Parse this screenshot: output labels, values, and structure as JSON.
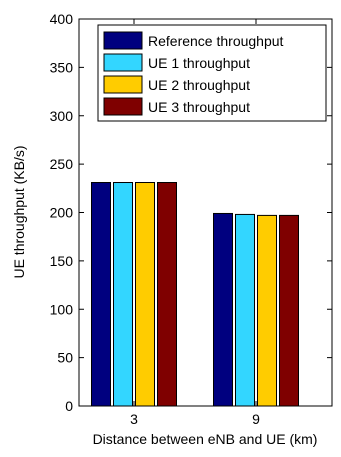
{
  "chart_data": {
    "type": "bar",
    "title": "",
    "xlabel": "Distance between eNB and UE (km)",
    "ylabel": "UE throughput (KB/s)",
    "categories": [
      "3",
      "9"
    ],
    "ylim": [
      0,
      400
    ],
    "yticks": [
      0,
      50,
      100,
      150,
      200,
      250,
      300,
      350,
      400
    ],
    "grid": false,
    "legend_position": "top-right",
    "series": [
      {
        "name": "Reference throughput",
        "color": "#00007f",
        "values": [
          231,
          199
        ]
      },
      {
        "name": "UE 1 throughput",
        "color": "#33d6ff",
        "values": [
          231,
          198
        ]
      },
      {
        "name": "UE 2 throughput",
        "color": "#ffcc00",
        "values": [
          231,
          197
        ]
      },
      {
        "name": "UE 3 throughput",
        "color": "#7f0000",
        "values": [
          231,
          197
        ]
      }
    ]
  }
}
